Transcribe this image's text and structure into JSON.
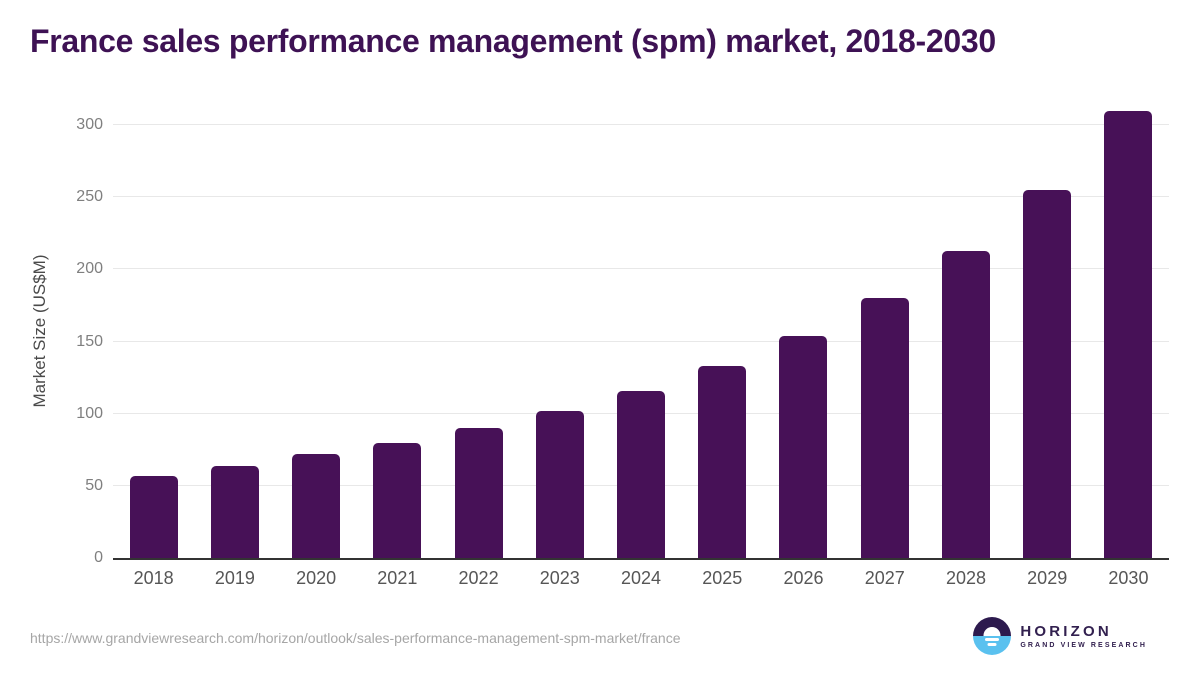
{
  "title": "France sales performance management (spm) market, 2018-2030",
  "chart_data": {
    "type": "bar",
    "title": "France sales performance management (spm) market, 2018-2030",
    "categories": [
      "2018",
      "2019",
      "2020",
      "2021",
      "2022",
      "2023",
      "2024",
      "2025",
      "2026",
      "2027",
      "2028",
      "2029",
      "2030"
    ],
    "values": [
      57,
      64,
      72,
      80,
      90,
      102,
      116,
      133,
      154,
      180,
      213,
      255,
      310
    ],
    "xlabel": "",
    "ylabel": "Market Size (US$M)",
    "ylim": [
      0,
      314
    ],
    "yticks": [
      0,
      50,
      100,
      150,
      200,
      250,
      300
    ],
    "grid": true,
    "legend_position": "none",
    "bar_color": "#471157"
  },
  "colors": {
    "title_text": "#3e1254",
    "bar": "#471157",
    "gridline": "#e8e8e8",
    "axis_line": "#333333",
    "y_tick_label": "#7f7f7f",
    "x_tick_label": "#565656",
    "axis_title": "#4a4a4a",
    "url_text": "#a6a6a6",
    "logo_top": "#2d1a4e",
    "logo_bottom": "#5ac1ef",
    "logo_text": "#32204f"
  },
  "footer": {
    "source_url": "https://www.grandviewresearch.com/horizon/outlook/sales-performance-management-spm-market/france",
    "logo": {
      "title": "HORIZON",
      "subtitle": "GRAND VIEW RESEARCH"
    }
  }
}
